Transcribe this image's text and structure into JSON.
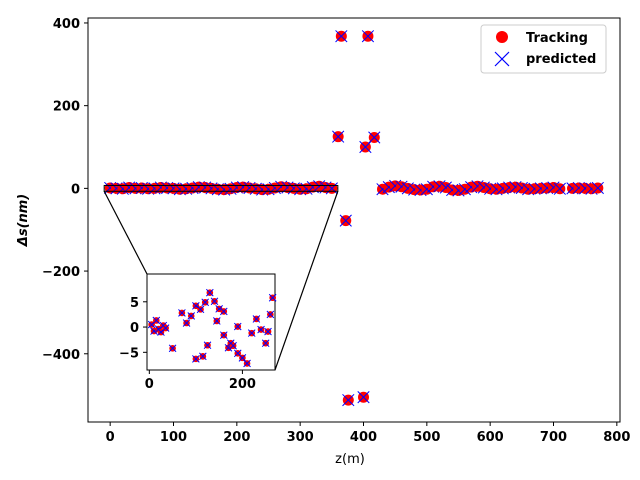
{
  "chart_data": {
    "type": "scatter",
    "xlabel": "z(m)",
    "ylabel": "Δs(nm)",
    "xlim": [
      -35,
      805
    ],
    "ylim": [
      -565,
      412
    ],
    "xticks": [
      0,
      100,
      200,
      300,
      400,
      500,
      600,
      700,
      800
    ],
    "yticks": [
      -400,
      -200,
      0,
      200,
      400
    ],
    "xtick_labels": [
      "0",
      "100",
      "200",
      "300",
      "400",
      "500",
      "600",
      "700",
      "800"
    ],
    "ytick_labels": [
      "−400",
      "−200",
      "0",
      "200",
      "400"
    ],
    "legend_position": "top-right",
    "colors": {
      "tracking": "#ff0000",
      "predicted": "#0000ff"
    },
    "series": [
      {
        "name": "Tracking",
        "marker": "circle",
        "color": "#ff0000"
      },
      {
        "name": "predicted",
        "marker": "x",
        "color": "#0000ff"
      }
    ],
    "points": [
      [
        0,
        1
      ],
      [
        10,
        0
      ],
      [
        20,
        -1
      ],
      [
        30,
        2
      ],
      [
        40,
        0
      ],
      [
        50,
        1
      ],
      [
        60,
        -1
      ],
      [
        70,
        0
      ],
      [
        80,
        2
      ],
      [
        90,
        1
      ],
      [
        100,
        0
      ],
      [
        110,
        -2
      ],
      [
        120,
        -1
      ],
      [
        130,
        1
      ],
      [
        140,
        3
      ],
      [
        150,
        2
      ],
      [
        160,
        0
      ],
      [
        170,
        -2
      ],
      [
        180,
        -3
      ],
      [
        190,
        -1
      ],
      [
        200,
        2
      ],
      [
        210,
        3
      ],
      [
        220,
        1
      ],
      [
        230,
        -1
      ],
      [
        240,
        -3
      ],
      [
        250,
        -2
      ],
      [
        260,
        1
      ],
      [
        270,
        4
      ],
      [
        280,
        2
      ],
      [
        290,
        0
      ],
      [
        300,
        -2
      ],
      [
        310,
        -1
      ],
      [
        320,
        3
      ],
      [
        330,
        5
      ],
      [
        340,
        2
      ],
      [
        350,
        0
      ],
      [
        360,
        125
      ],
      [
        365,
        368
      ],
      [
        372,
        -78
      ],
      [
        376,
        -512
      ],
      [
        400,
        -505
      ],
      [
        403,
        100
      ],
      [
        407,
        368
      ],
      [
        417,
        123
      ],
      [
        430,
        -2
      ],
      [
        440,
        3
      ],
      [
        450,
        6
      ],
      [
        460,
        4
      ],
      [
        470,
        0
      ],
      [
        480,
        -3
      ],
      [
        490,
        -4
      ],
      [
        500,
        -2
      ],
      [
        510,
        4
      ],
      [
        520,
        5
      ],
      [
        530,
        2
      ],
      [
        540,
        -4
      ],
      [
        550,
        -5
      ],
      [
        560,
        -2
      ],
      [
        570,
        3
      ],
      [
        580,
        5
      ],
      [
        590,
        2
      ],
      [
        600,
        -1
      ],
      [
        610,
        -2
      ],
      [
        620,
        0
      ],
      [
        630,
        2
      ],
      [
        640,
        3
      ],
      [
        650,
        1
      ],
      [
        660,
        -2
      ],
      [
        670,
        -1
      ],
      [
        680,
        0
      ],
      [
        690,
        1
      ],
      [
        700,
        2
      ],
      [
        710,
        -1
      ],
      [
        730,
        0
      ],
      [
        740,
        1
      ],
      [
        750,
        0
      ],
      [
        760,
        -1
      ],
      [
        770,
        1
      ]
    ],
    "inset": {
      "xlim": [
        -5,
        270
      ],
      "ylim": [
        -8.5,
        10.5
      ],
      "xticks": [
        0,
        200
      ],
      "yticks": [
        -5,
        0,
        5
      ],
      "xtick_labels": [
        "0",
        "200"
      ],
      "ytick_labels": [
        "−5",
        "0",
        "5"
      ],
      "source_xlim": [
        0,
        350
      ],
      "points": [
        [
          5,
          0.5
        ],
        [
          10,
          -0.8
        ],
        [
          15,
          1.3
        ],
        [
          20,
          -0.4
        ],
        [
          25,
          -1
        ],
        [
          30,
          0.3
        ],
        [
          35,
          -0.2
        ],
        [
          50,
          -4.2
        ],
        [
          70,
          2.8
        ],
        [
          80,
          0.8
        ],
        [
          90,
          2.2
        ],
        [
          100,
          4.2
        ],
        [
          110,
          3.5
        ],
        [
          120,
          4.9
        ],
        [
          130,
          6.8
        ],
        [
          140,
          5.1
        ],
        [
          150,
          3.6
        ],
        [
          160,
          -1.6
        ],
        [
          170,
          -4.1
        ],
        [
          180,
          -3.7
        ],
        [
          190,
          -5.2
        ],
        [
          200,
          -6.1
        ],
        [
          210,
          -7.2
        ],
        [
          220,
          -1.2
        ],
        [
          230,
          1.6
        ],
        [
          240,
          -0.5
        ],
        [
          250,
          -3.2
        ],
        [
          255,
          -0.9
        ],
        [
          260,
          2.5
        ],
        [
          265,
          5.8
        ],
        [
          100,
          -6.3
        ],
        [
          115,
          -5.8
        ],
        [
          125,
          -3.6
        ],
        [
          145,
          1.2
        ],
        [
          160,
          3.1
        ],
        [
          175,
          -3.2
        ],
        [
          190,
          0.1
        ]
      ]
    }
  }
}
